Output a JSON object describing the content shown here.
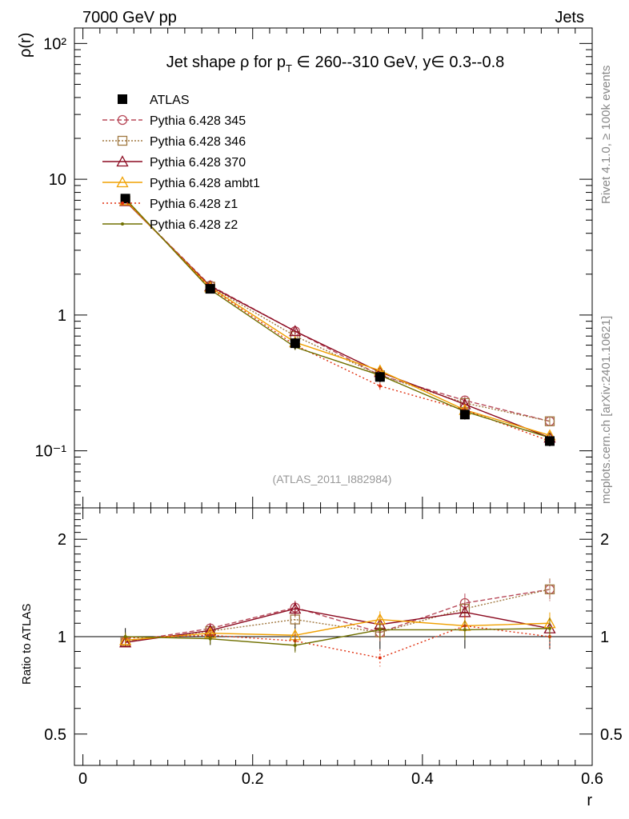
{
  "header": {
    "left": "7000 GeV pp",
    "right": "Jets"
  },
  "side": {
    "rivet": "Rivet 4.1.0, ≥ 100k events",
    "mcplots": "mcplots.cern.ch [arXiv:2401.10621]"
  },
  "chart_data": {
    "type": "line",
    "title": "Jet shape ρ for p_T ∈ 260--310 GeV, y∈ 0.3--0.8",
    "title_parts": {
      "prefix": "Jet shape ρ for p",
      "sub": "T",
      "suffix": " ∈ 260--310 GeV, y∈ 0.3--0.8"
    },
    "analysis_label": "(ATLAS_2011_I882984)",
    "xlabel": "r",
    "ylabel": "ρ(r)",
    "ratio_ylabel": "Ratio to ATLAS",
    "xlim": [
      -0.01,
      0.6
    ],
    "ylim": [
      0.038,
      130
    ],
    "yscale": "log",
    "ratio_ylim": [
      0.4,
      2.5
    ],
    "x_ticks": [
      "0",
      "0.2",
      "0.4",
      "0.6"
    ],
    "x_tick_values": [
      0,
      0.2,
      0.4,
      0.6
    ],
    "y_tick_labels": [
      "10⁻¹",
      "1",
      "10",
      "10²"
    ],
    "y_tick_values": [
      0.1,
      1,
      10,
      100
    ],
    "ratio_tick_labels": [
      "0.5",
      "1",
      "2"
    ],
    "ratio_tick_values": [
      0.5,
      1,
      2
    ],
    "ratio_tick_labels_right": [
      "0.5",
      "1",
      "2"
    ],
    "x": [
      0.05,
      0.15,
      0.25,
      0.35,
      0.45,
      0.55
    ],
    "data": {
      "name": "ATLAS",
      "values": [
        7.2,
        1.56,
        0.62,
        0.35,
        0.185,
        0.118
      ],
      "errors": [
        0.45,
        0.09,
        0.06,
        0.03,
        0.015,
        0.01
      ],
      "color": "#000000"
    },
    "series": [
      {
        "name": "Pythia 6.428 345",
        "color": "#b84a5a",
        "dash": "6,3",
        "marker": "circle",
        "values": [
          6.95,
          1.65,
          0.76,
          0.36,
          0.235,
          0.165
        ],
        "ratio": [
          0.965,
          1.06,
          1.23,
          1.03,
          1.27,
          1.4
        ]
      },
      {
        "name": "Pythia 6.428 346",
        "color": "#a07840",
        "dash": "2,2",
        "marker": "square",
        "values": [
          6.95,
          1.62,
          0.7,
          0.36,
          0.225,
          0.165
        ],
        "ratio": [
          0.965,
          1.04,
          1.13,
          1.03,
          1.22,
          1.4
        ]
      },
      {
        "name": "Pythia 6.428 370",
        "color": "#8b0a20",
        "dash": "",
        "marker": "triangle",
        "values": [
          6.9,
          1.63,
          0.76,
          0.38,
          0.22,
          0.125
        ],
        "ratio": [
          0.96,
          1.045,
          1.22,
          1.09,
          1.19,
          1.06
        ]
      },
      {
        "name": "Pythia 6.428 ambt1",
        "color": "#f0a000",
        "dash": "",
        "marker": "triangle",
        "values": [
          7.0,
          1.6,
          0.63,
          0.39,
          0.2,
          0.13
        ],
        "ratio": [
          0.975,
          1.025,
          1.01,
          1.13,
          1.08,
          1.1
        ]
      },
      {
        "name": "Pythia 6.428 z1",
        "color": "#e03010",
        "dash": "2,3",
        "marker": "dot",
        "values": [
          7.1,
          1.58,
          0.6,
          0.3,
          0.2,
          0.118
        ],
        "ratio": [
          0.99,
          1.01,
          0.97,
          0.86,
          1.08,
          1.0
        ]
      },
      {
        "name": "Pythia 6.428 z2",
        "color": "#707000",
        "dash": "",
        "marker": "dot",
        "values": [
          7.2,
          1.54,
          0.58,
          0.36,
          0.195,
          0.125
        ],
        "ratio": [
          1.0,
          0.985,
          0.94,
          1.05,
          1.05,
          1.06
        ]
      }
    ]
  }
}
